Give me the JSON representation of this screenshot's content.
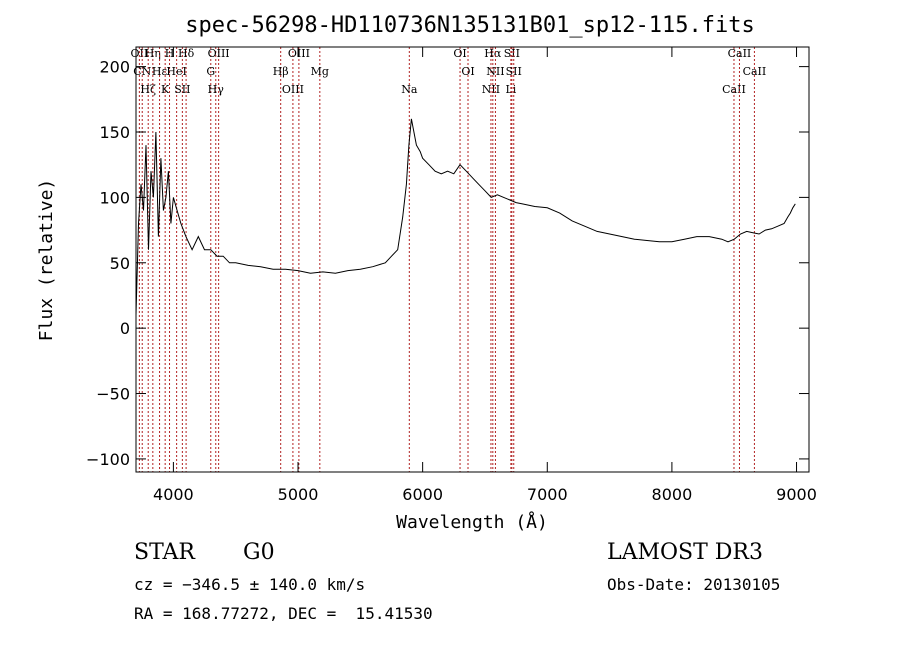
{
  "chart_data": {
    "type": "line",
    "title": "spec-56298-HD110736N135131B01_sp12-115.fits",
    "xlabel": "Wavelength (Å)",
    "ylabel": "Flux (relative)",
    "xlim": [
      3700,
      9100
    ],
    "ylim": [
      -110,
      215
    ],
    "xticks": [
      4000,
      5000,
      6000,
      7000,
      8000,
      9000
    ],
    "xtick_labels": [
      "4000",
      "5000",
      "6000",
      "7000",
      "8000",
      "9000"
    ],
    "yticks": [
      -100,
      -50,
      0,
      50,
      100,
      150,
      200
    ],
    "ytick_labels": [
      "−100",
      "−50",
      "0",
      "50",
      "100",
      "150",
      "200"
    ],
    "line_color": "#000000",
    "marker_color": "#b22222",
    "spectrum": {
      "x": [
        3700,
        3720,
        3740,
        3760,
        3780,
        3800,
        3820,
        3840,
        3860,
        3880,
        3900,
        3920,
        3940,
        3960,
        3980,
        4000,
        4030,
        4060,
        4100,
        4150,
        4200,
        4250,
        4300,
        4350,
        4400,
        4450,
        4500,
        4600,
        4700,
        4800,
        4900,
        5000,
        5100,
        5200,
        5300,
        5400,
        5500,
        5600,
        5700,
        5750,
        5800,
        5840,
        5870,
        5890,
        5910,
        5930,
        5950,
        5980,
        6000,
        6050,
        6100,
        6150,
        6200,
        6250,
        6300,
        6350,
        6400,
        6450,
        6500,
        6550,
        6600,
        6650,
        6700,
        6750,
        6800,
        6900,
        7000,
        7100,
        7200,
        7300,
        7400,
        7500,
        7600,
        7700,
        7800,
        7900,
        8000,
        8100,
        8200,
        8300,
        8400,
        8450,
        8500,
        8550,
        8600,
        8650,
        8700,
        8750,
        8800,
        8850,
        8900,
        8930,
        8950,
        8970,
        8990
      ],
      "y": [
        10,
        80,
        110,
        90,
        140,
        60,
        120,
        100,
        150,
        70,
        130,
        90,
        100,
        120,
        80,
        100,
        90,
        80,
        70,
        60,
        70,
        60,
        60,
        55,
        55,
        50,
        50,
        48,
        47,
        45,
        45,
        44,
        42,
        43,
        42,
        44,
        45,
        47,
        50,
        55,
        60,
        85,
        110,
        140,
        160,
        150,
        140,
        135,
        130,
        125,
        120,
        118,
        120,
        118,
        125,
        120,
        115,
        110,
        105,
        100,
        102,
        100,
        98,
        96,
        95,
        93,
        92,
        88,
        82,
        78,
        74,
        72,
        70,
        68,
        67,
        66,
        66,
        68,
        70,
        70,
        68,
        66,
        68,
        72,
        74,
        73,
        72,
        75,
        76,
        78,
        80,
        85,
        88,
        92,
        95
      ]
    },
    "lines": [
      {
        "wl": 3727,
        "label": "OII"
      },
      {
        "wl": 3750,
        "label": "CN"
      },
      {
        "wl": 3798,
        "label": "Hζ"
      },
      {
        "wl": 3835,
        "label": "Hη"
      },
      {
        "wl": 3889,
        "label": "Hε"
      },
      {
        "wl": 3934,
        "label": "K"
      },
      {
        "wl": 3969,
        "label": "H"
      },
      {
        "wl": 4026,
        "label": "HeI"
      },
      {
        "wl": 4072,
        "label": "SII"
      },
      {
        "wl": 4102,
        "label": "Hδ"
      },
      {
        "wl": 4300,
        "label": "G"
      },
      {
        "wl": 4340,
        "label": "Hγ"
      },
      {
        "wl": 4363,
        "label": "OIII"
      },
      {
        "wl": 4861,
        "label": "Hβ"
      },
      {
        "wl": 4959,
        "label": "OIII"
      },
      {
        "wl": 5007,
        "label": "OIII"
      },
      {
        "wl": 5175,
        "label": "Mg"
      },
      {
        "wl": 5893,
        "label": "Na"
      },
      {
        "wl": 6300,
        "label": "OI"
      },
      {
        "wl": 6364,
        "label": "OI"
      },
      {
        "wl": 6548,
        "label": "NII"
      },
      {
        "wl": 6563,
        "label": "Hα"
      },
      {
        "wl": 6584,
        "label": "NII"
      },
      {
        "wl": 6708,
        "label": "Li"
      },
      {
        "wl": 6716,
        "label": "SII"
      },
      {
        "wl": 6731,
        "label": "SII"
      },
      {
        "wl": 8498,
        "label": "CaII"
      },
      {
        "wl": 8542,
        "label": "CaII"
      },
      {
        "wl": 8662,
        "label": "CaII"
      }
    ]
  },
  "info": {
    "class": "STAR",
    "subclass": "G0",
    "survey": "LAMOST DR3",
    "cz": "cz = −346.5 ± 140.0 km/s",
    "obs_date": "Obs-Date: 20130105",
    "radec": "RA = 168.77272, DEC =  15.41530"
  }
}
